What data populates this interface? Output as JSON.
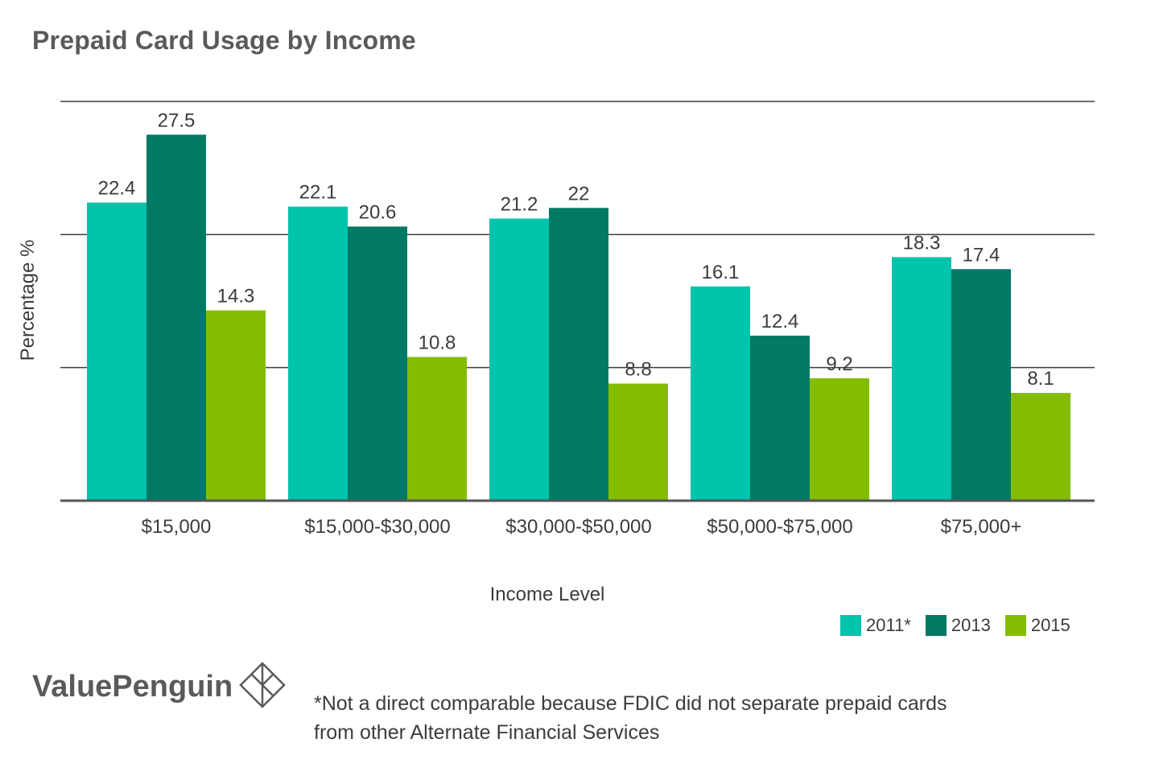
{
  "title": "Prepaid Card Usage by Income",
  "colors": {
    "series_2011": "#00c4ac",
    "series_2013": "#007a64",
    "series_2015": "#84bd00",
    "text": "#3c3c3c",
    "title": "#5a5a5a",
    "gridline": "#3c3c3c",
    "baseline": "#555555"
  },
  "chart_data": {
    "type": "bar",
    "title": "Prepaid Card Usage by Income",
    "xlabel": "Income Level",
    "ylabel": "Percentage %",
    "categories": [
      "$15,000",
      "$15,000-$30,000",
      "$30,000-$50,000",
      "$50,000-$75,000",
      "$75,000+"
    ],
    "series": [
      {
        "name": "2011*",
        "values": [
          22.4,
          22.1,
          21.2,
          16.1,
          18.3
        ]
      },
      {
        "name": "2013",
        "values": [
          27.5,
          20.6,
          22,
          12.4,
          17.4
        ]
      },
      {
        "name": "2015",
        "values": [
          14.3,
          10.8,
          8.8,
          9.2,
          8.1
        ]
      }
    ],
    "ylim": [
      0,
      30
    ],
    "gridlines": [
      10,
      20,
      30
    ],
    "grid": true,
    "show_y_tick_labels": false,
    "legend_position": "bottom-right"
  },
  "legend": [
    "2011*",
    "2013",
    "2015"
  ],
  "brand": {
    "name": "ValuePenguin",
    "icon": "penguin-diamond-logo-icon"
  },
  "footnote": {
    "line1": "*Not a direct comparable because FDIC did not separate prepaid cards",
    "line2": "from other Alternate Financial Services"
  }
}
